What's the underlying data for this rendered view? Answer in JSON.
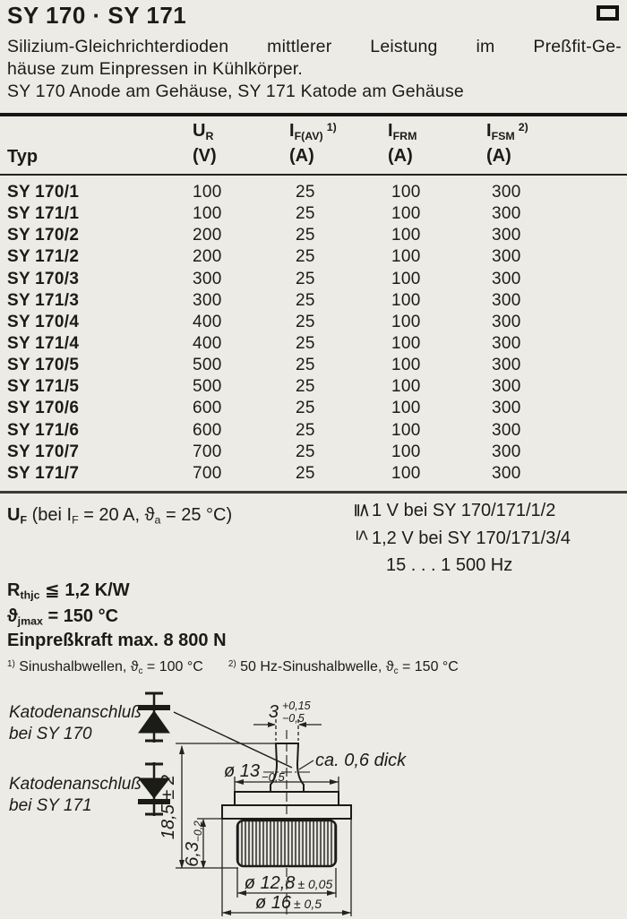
{
  "title": "SY 170 · SY 171",
  "description": {
    "line1": "Silizium-Gleichrichterdioden mittlerer Leistung im Preßfit-Ge-",
    "line2": "häuse zum Einpressen in Kühlkörper.",
    "line3": "SY 170 Anode am Gehäuse, SY 171 Katode am Gehäuse"
  },
  "table": {
    "typ_header": "Typ",
    "columns": [
      {
        "symbol": "U",
        "subscript": "R",
        "footnote": "",
        "unit": "(V)"
      },
      {
        "symbol": "I",
        "subscript": "F(AV)",
        "footnote": "1)",
        "unit": "(A)"
      },
      {
        "symbol": "I",
        "subscript": "FRM",
        "footnote": "",
        "unit": "(A)"
      },
      {
        "symbol": "I",
        "subscript": "FSM",
        "footnote": "2)",
        "unit": "(A)"
      }
    ],
    "rows": [
      {
        "typ": "SY 170/1",
        "ur": "100",
        "ifav": "25",
        "ifrm": "100",
        "ifsm": "300"
      },
      {
        "typ": "SY 171/1",
        "ur": "100",
        "ifav": "25",
        "ifrm": "100",
        "ifsm": "300"
      },
      {
        "typ": "SY 170/2",
        "ur": "200",
        "ifav": "25",
        "ifrm": "100",
        "ifsm": "300"
      },
      {
        "typ": "SY 171/2",
        "ur": "200",
        "ifav": "25",
        "ifrm": "100",
        "ifsm": "300"
      },
      {
        "typ": "SY 170/3",
        "ur": "300",
        "ifav": "25",
        "ifrm": "100",
        "ifsm": "300"
      },
      {
        "typ": "SY 171/3",
        "ur": "300",
        "ifav": "25",
        "ifrm": "100",
        "ifsm": "300"
      },
      {
        "typ": "SY 170/4",
        "ur": "400",
        "ifav": "25",
        "ifrm": "100",
        "ifsm": "300"
      },
      {
        "typ": "SY 171/4",
        "ur": "400",
        "ifav": "25",
        "ifrm": "100",
        "ifsm": "300"
      },
      {
        "typ": "SY 170/5",
        "ur": "500",
        "ifav": "25",
        "ifrm": "100",
        "ifsm": "300"
      },
      {
        "typ": "SY 171/5",
        "ur": "500",
        "ifav": "25",
        "ifrm": "100",
        "ifsm": "300"
      },
      {
        "typ": "SY 170/6",
        "ur": "600",
        "ifav": "25",
        "ifrm": "100",
        "ifsm": "300"
      },
      {
        "typ": "SY 171/6",
        "ur": "600",
        "ifav": "25",
        "ifrm": "100",
        "ifsm": "300"
      },
      {
        "typ": "SY 170/7",
        "ur": "700",
        "ifav": "25",
        "ifrm": "100",
        "ifsm": "300"
      },
      {
        "typ": "SY 171/7",
        "ur": "700",
        "ifav": "25",
        "ifrm": "100",
        "ifsm": "300"
      }
    ]
  },
  "uf_section": {
    "symbol": "U",
    "symbol_sub": "F",
    "condition_pre": " (bei ",
    "if_symbol": "I",
    "if_sub": "F",
    "condition_mid": " = 20 A, ",
    "theta_symbol": "ϑ",
    "theta_sub": "a",
    "condition_end": " = 25 °C)",
    "limit1_relation": "≦",
    "limit1_text": "1 V bei SY 170/171/1/2",
    "limit2_relation": "≤",
    "limit2_text": "1,2 V bei SY 170/171/3/4",
    "frequency_range": "15 . . . 1 500 Hz"
  },
  "parameters": {
    "rth_symbol": "R",
    "rth_sub": "thjc",
    "rth_relation": " ≦ ",
    "rth_value": "1,2 K/W",
    "tj_symbol": "ϑ",
    "tj_sub": "jmax",
    "tj_relation": " = ",
    "tj_value": "150 °C",
    "press_fit": "Einpreßkraft max. 8 800 N"
  },
  "footnotes": {
    "fn1_mark": "1)",
    "fn1_pre": " Sinushalbwellen, ",
    "fn1_theta": "ϑ",
    "fn1_theta_sub": "c",
    "fn1_post": " = 100 °C",
    "fn2_mark": "2)",
    "fn2_pre": " 50 Hz-Sinushalbwelle, ",
    "fn2_theta": "ϑ",
    "fn2_theta_sub": "c",
    "fn2_post": " = 150 °C"
  },
  "diagram": {
    "cathode_sy170_line1": "Katodenanschluß",
    "cathode_sy170_line2": "bei SY 170",
    "cathode_sy171_line1": "Katodenanschluß",
    "cathode_sy171_line2": "bei SY 171",
    "dim_tab_width": "3",
    "dim_tab_tol_plus": "+0,15",
    "dim_tab_tol_minus": "−0,5",
    "dim_thickness": "ca. 0,6 dick",
    "dim_top_diameter": "ø 13",
    "dim_top_diameter_tol": "−0,5",
    "dim_total_height": "18,5 ± 2",
    "dim_knurl_height": "6,3",
    "dim_knurl_height_tol": "−0,2",
    "dim_knurl_diameter": "ø 12,8",
    "dim_knurl_diameter_tol": "± 0,05",
    "dim_flange_diameter": "ø 16",
    "dim_flange_diameter_tol": "± 0,5"
  }
}
